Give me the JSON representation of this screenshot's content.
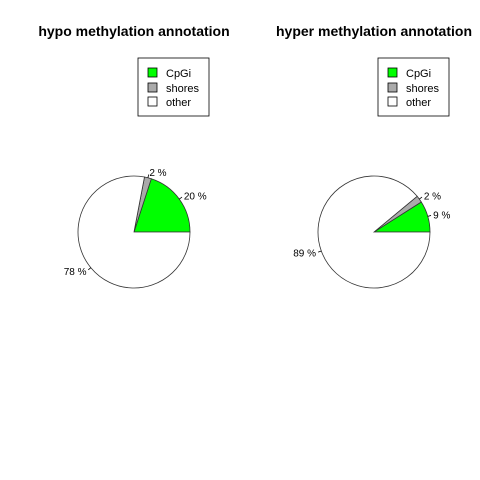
{
  "chart_data": [
    {
      "type": "pie",
      "title": "hypo methylation annotation",
      "categories": [
        "CpGi",
        "shores",
        "other"
      ],
      "values": [
        20,
        2,
        78
      ],
      "labels": [
        "20 %",
        "2 %",
        "78 %"
      ],
      "colors": [
        "#00ff00",
        "#aaaaaa",
        "#ffffff"
      ],
      "legend_position": "top-right"
    },
    {
      "type": "pie",
      "title": "hyper methylation annotation",
      "categories": [
        "CpGi",
        "shores",
        "other"
      ],
      "values": [
        9,
        2,
        89
      ],
      "labels": [
        "9 %",
        "2 %",
        "89 %"
      ],
      "colors": [
        "#00ff00",
        "#aaaaaa",
        "#ffffff"
      ],
      "legend_position": "top-right"
    }
  ]
}
